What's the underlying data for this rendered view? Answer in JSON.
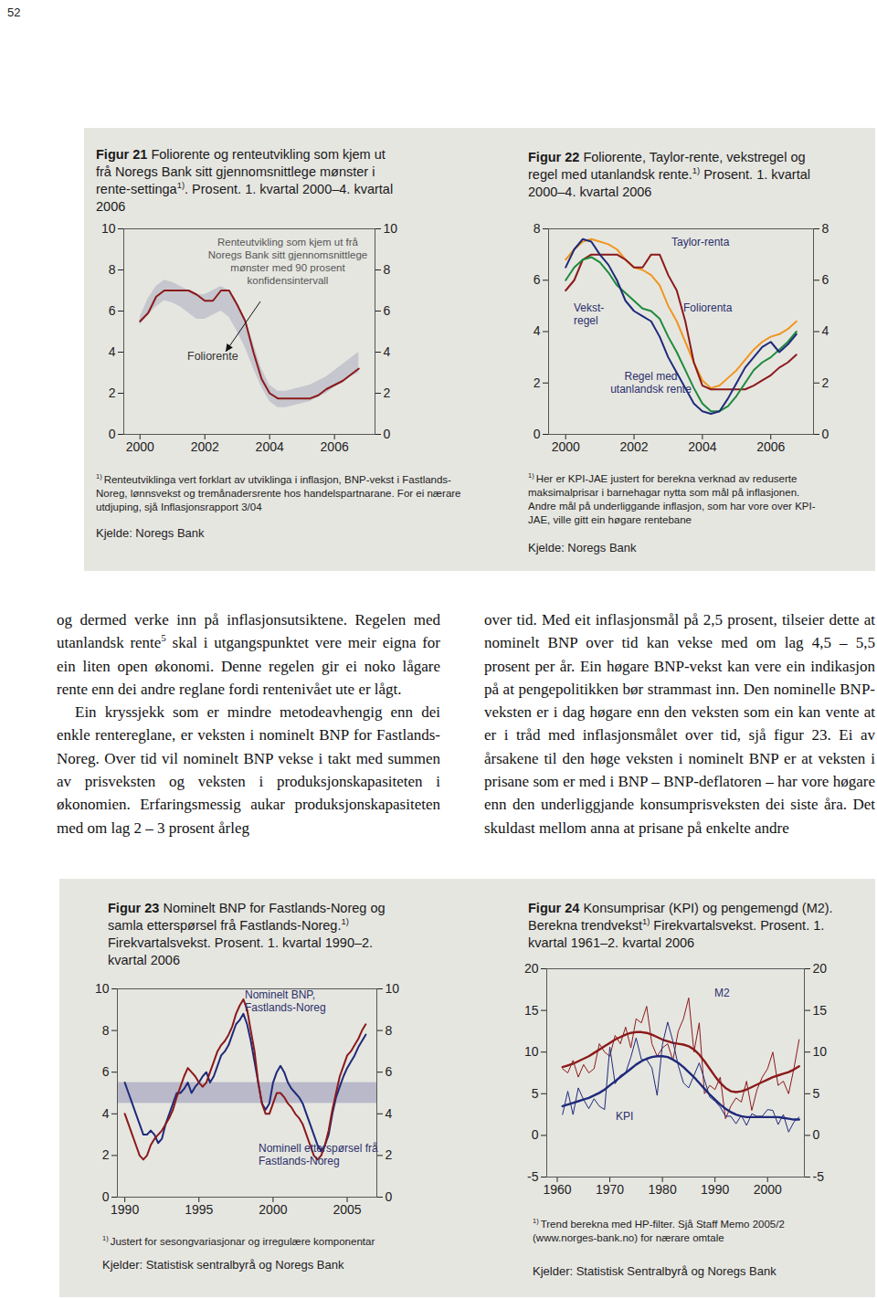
{
  "page_number": "52",
  "chart_data": [
    {
      "type": "line",
      "title": [
        {
          "text": "Figur 21",
          "bold": true
        },
        {
          "text": " Foliorente og renteutvikling som kjem ut frå Noregs Bank sitt gjennomsnittlege mønster i rente-settinga"
        },
        {
          "text": "1)",
          "sup": true
        },
        {
          "text": ". Prosent. 1. kvartal 2000–4. kvartal 2006"
        }
      ],
      "note": {
        "ref": "1)",
        "text": "Renteutviklinga vert forklart av utviklinga i inflasjon, BNP-vekst i Fastlands-Noreg, lønnsvekst og tremånadersrente hos handelspartnarane. For ei nærare utdjuping, sjå Inflasjonsrapport 3/04"
      },
      "source": "Kjelde: Noregs Bank",
      "x": [
        2000,
        2000.25,
        2000.5,
        2000.75,
        2001,
        2001.25,
        2001.5,
        2001.75,
        2002,
        2002.25,
        2002.5,
        2002.75,
        2003,
        2003.25,
        2003.5,
        2003.75,
        2004,
        2004.25,
        2004.5,
        2004.75,
        2005,
        2005.25,
        2005.5,
        2005.75,
        2006,
        2006.25,
        2006.5,
        2006.75
      ],
      "band": {
        "name": "Renteutvikling som kjem ut frå Noregs Bank sitt gjennomsnittlege mønster med 90 prosent konfidensintervall",
        "color": "#c6c6ce",
        "lower": [
          5.3,
          5.8,
          6.2,
          6.5,
          6.4,
          6.2,
          5.9,
          5.6,
          5.6,
          5.8,
          6.0,
          5.7,
          5.0,
          4.2,
          3.2,
          2.3,
          1.6,
          1.3,
          1.3,
          1.4,
          1.5,
          1.6,
          1.8,
          2.0,
          2.3,
          2.5,
          2.8,
          3.0
        ],
        "upper": [
          5.7,
          6.6,
          7.2,
          7.5,
          7.4,
          7.2,
          7.0,
          6.8,
          6.8,
          7.0,
          7.2,
          7.0,
          6.4,
          5.6,
          4.4,
          3.2,
          2.4,
          2.1,
          2.1,
          2.2,
          2.3,
          2.4,
          2.6,
          2.8,
          3.1,
          3.4,
          3.7,
          4.0
        ]
      },
      "series": [
        {
          "name": "Foliorente",
          "color": "#8b1a1a",
          "values": [
            5.5,
            5.9,
            6.7,
            7.0,
            7.0,
            7.0,
            7.0,
            6.8,
            6.5,
            6.5,
            7.0,
            7.0,
            6.3,
            5.5,
            4.0,
            2.7,
            2.0,
            1.75,
            1.75,
            1.75,
            1.75,
            1.75,
            1.9,
            2.2,
            2.4,
            2.6,
            2.9,
            3.2
          ]
        }
      ],
      "xlim": [
        1999.5,
        2007.25
      ],
      "xticks": [
        2000,
        2002,
        2004,
        2006
      ],
      "ylim": [
        0,
        10
      ],
      "yticks": [
        0,
        2,
        4,
        6,
        8,
        10
      ],
      "grid": false
    },
    {
      "type": "line",
      "title": [
        {
          "text": "Figur 22",
          "bold": true
        },
        {
          "text": " Foliorente, Taylor-rente, vekstregel og regel med utanlandsk rente."
        },
        {
          "text": "1)",
          "sup": true
        },
        {
          "text": " Prosent. 1. kvartal 2000–4. kvartal 2006"
        }
      ],
      "note": {
        "ref": "1)",
        "text": "Her er KPI-JAE justert for berekna verknad av reduserte maksimalprisar i barnehagar nytta som mål på inflasjonen. Andre mål på underliggande inflasjon, som har vore over KPI-JAE, ville gitt ein høgare rentebane"
      },
      "source": "Kjelde: Noregs Bank",
      "x": [
        2000,
        2000.25,
        2000.5,
        2000.75,
        2001,
        2001.25,
        2001.5,
        2001.75,
        2002,
        2002.25,
        2002.5,
        2002.75,
        2003,
        2003.25,
        2003.5,
        2003.75,
        2004,
        2004.25,
        2004.5,
        2004.75,
        2005,
        2005.25,
        2005.5,
        2005.75,
        2006,
        2006.25,
        2006.5,
        2006.75
      ],
      "series": [
        {
          "name": "Taylor-renta",
          "color": "#f0961e",
          "values": [
            6.8,
            7.2,
            7.5,
            7.6,
            7.5,
            7.4,
            7.2,
            6.8,
            6.5,
            6.4,
            6.2,
            5.8,
            5.0,
            4.4,
            3.6,
            2.8,
            2.1,
            1.8,
            1.9,
            2.2,
            2.5,
            2.9,
            3.3,
            3.6,
            3.8,
            3.9,
            4.1,
            4.4
          ]
        },
        {
          "name": "Foliorenta",
          "color": "#8b1a1a",
          "values": [
            5.6,
            6.0,
            6.8,
            7.0,
            7.0,
            7.0,
            7.0,
            6.8,
            6.5,
            6.5,
            7.0,
            7.0,
            6.2,
            5.6,
            4.4,
            2.8,
            1.9,
            1.75,
            1.75,
            1.75,
            1.75,
            1.75,
            1.9,
            2.1,
            2.3,
            2.6,
            2.8,
            3.1
          ]
        },
        {
          "name": "Vekst-regel",
          "color": "#1e8a3c",
          "values": [
            6.0,
            6.5,
            6.8,
            6.9,
            6.7,
            6.3,
            5.8,
            5.5,
            5.2,
            4.9,
            4.8,
            4.5,
            3.8,
            3.2,
            2.5,
            1.8,
            1.2,
            0.9,
            0.9,
            1.1,
            1.5,
            2.0,
            2.5,
            2.8,
            3.0,
            3.3,
            3.6,
            4.0
          ]
        },
        {
          "name": "Regel med utanlandsk rente",
          "color": "#1f2a7a",
          "values": [
            6.5,
            7.2,
            7.6,
            7.5,
            7.0,
            6.6,
            6.0,
            5.2,
            4.8,
            4.6,
            4.4,
            3.8,
            3.0,
            2.4,
            1.8,
            1.2,
            0.9,
            0.8,
            0.9,
            1.4,
            2.0,
            2.6,
            3.0,
            3.4,
            3.6,
            3.2,
            3.5,
            3.9
          ]
        }
      ],
      "xlim": [
        1999.5,
        2007.25
      ],
      "xticks": [
        2000,
        2002,
        2004,
        2006
      ],
      "ylim": [
        0,
        8
      ],
      "yticks": [
        0,
        2,
        4,
        6,
        8
      ],
      "grid": false
    },
    {
      "type": "line",
      "title": [
        {
          "text": "Figur 23",
          "bold": true
        },
        {
          "text": " Nominelt BNP for Fastlands-Noreg og samla etterspørsel frå Fastlands-Noreg."
        },
        {
          "text": "1)",
          "sup": true
        },
        {
          "text": " Firekvartalsvekst. Prosent. 1. kvartal 1990–2. kvartal 2006"
        }
      ],
      "note": {
        "ref": "1)",
        "text": "Justert for sesongvariasjonar og irregulære komponentar"
      },
      "source": "Kjelder: Statistisk sentralbyrå og Noregs Bank",
      "x": [
        1990,
        1990.25,
        1990.5,
        1990.75,
        1991,
        1991.25,
        1991.5,
        1991.75,
        1992,
        1992.25,
        1992.5,
        1992.75,
        1993,
        1993.25,
        1993.5,
        1993.75,
        1994,
        1994.25,
        1994.5,
        1994.75,
        1995,
        1995.25,
        1995.5,
        1995.75,
        1996,
        1996.25,
        1996.5,
        1996.75,
        1997,
        1997.25,
        1997.5,
        1997.75,
        1998,
        1998.25,
        1998.5,
        1998.75,
        1999,
        1999.25,
        1999.5,
        1999.75,
        2000,
        2000.25,
        2000.5,
        2000.75,
        2001,
        2001.25,
        2001.5,
        2001.75,
        2002,
        2002.25,
        2002.5,
        2002.75,
        2003,
        2003.25,
        2003.5,
        2003.75,
        2004,
        2004.25,
        2004.5,
        2004.75,
        2005,
        2005.25,
        2005.5,
        2005.75,
        2006,
        2006.25
      ],
      "band": {
        "color": "#b9b9ca",
        "lower": 4.5,
        "upper": 5.5
      },
      "series": [
        {
          "name": "Nominelt BNP, Fastlands-Noreg",
          "color": "#1f2a7a",
          "values": [
            5.5,
            5.0,
            4.5,
            4.0,
            3.5,
            3.0,
            3.0,
            3.2,
            3.0,
            2.6,
            2.8,
            3.5,
            4.0,
            4.5,
            5.0,
            5.0,
            5.2,
            5.5,
            5.0,
            5.3,
            5.5,
            5.8,
            6.0,
            5.5,
            5.8,
            6.3,
            6.8,
            7.0,
            7.3,
            7.8,
            8.3,
            8.5,
            8.8,
            8.3,
            7.5,
            6.5,
            5.5,
            4.5,
            4.2,
            4.5,
            5.5,
            6.0,
            6.3,
            6.0,
            5.5,
            5.2,
            5.0,
            4.8,
            4.5,
            4.0,
            3.5,
            3.0,
            2.5,
            2.2,
            2.5,
            3.0,
            4.0,
            4.8,
            5.3,
            5.8,
            6.2,
            6.5,
            6.8,
            7.2,
            7.5,
            7.8
          ]
        },
        {
          "name": "Nominell etterspørsel frå Fastlands-Noreg",
          "color": "#8b1a1a",
          "values": [
            4.0,
            3.5,
            3.0,
            2.5,
            2.0,
            1.8,
            2.0,
            2.5,
            2.8,
            3.0,
            3.2,
            3.5,
            3.8,
            4.2,
            4.8,
            5.3,
            5.8,
            6.2,
            6.0,
            5.8,
            5.5,
            5.3,
            5.5,
            6.0,
            6.5,
            7.0,
            7.3,
            7.5,
            7.8,
            8.2,
            8.8,
            9.2,
            9.5,
            9.0,
            8.0,
            7.0,
            5.5,
            4.5,
            4.0,
            4.0,
            4.5,
            5.0,
            5.0,
            4.8,
            4.5,
            4.3,
            4.0,
            3.8,
            3.5,
            3.0,
            2.5,
            2.0,
            1.8,
            2.0,
            2.5,
            3.2,
            4.2,
            5.0,
            5.8,
            6.3,
            6.8,
            7.0,
            7.3,
            7.6,
            8.0,
            8.3
          ]
        }
      ],
      "xlim": [
        1989.5,
        2007
      ],
      "xticks": [
        1990,
        1995,
        2000,
        2005
      ],
      "ylim": [
        0,
        10
      ],
      "yticks": [
        0,
        2,
        4,
        6,
        8,
        10
      ],
      "grid": false
    },
    {
      "type": "line",
      "title": [
        {
          "text": "Figur 24",
          "bold": true
        },
        {
          "text": " Konsumprisar (KPI) og pengemengd (M2). Berekna trendvekst"
        },
        {
          "text": "1)",
          "sup": true
        },
        {
          "text": " Firekvartalsvekst. Prosent. 1. kvartal 1961–2. kvartal 2006"
        }
      ],
      "note": {
        "ref": "1)",
        "text": "Trend berekna med HP-filter. Sjå Staff Memo 2005/2 (www.norges-bank.no) for nærare omtale"
      },
      "source": "Kjelder: Statistisk Sentralbyrå og Noregs Bank",
      "x": [
        1961,
        1962,
        1963,
        1964,
        1965,
        1966,
        1967,
        1968,
        1969,
        1970,
        1971,
        1972,
        1973,
        1974,
        1975,
        1976,
        1977,
        1978,
        1979,
        1980,
        1981,
        1982,
        1983,
        1984,
        1985,
        1986,
        1987,
        1988,
        1989,
        1990,
        1991,
        1992,
        1993,
        1994,
        1995,
        1996,
        1997,
        1998,
        1999,
        2000,
        2001,
        2002,
        2003,
        2004,
        2005,
        2006
      ],
      "series": [
        {
          "name": "M2",
          "color": "#8b1a1a",
          "values": [
            8.0,
            7.5,
            9.0,
            7.0,
            8.5,
            7.5,
            8.0,
            11.0,
            10.0,
            9.5,
            12.0,
            11.0,
            13.0,
            10.5,
            14.0,
            13.5,
            15.5,
            11.0,
            9.5,
            10.5,
            11.0,
            9.0,
            12.5,
            14.0,
            16.5,
            10.0,
            13.5,
            5.0,
            6.0,
            5.5,
            7.0,
            2.0,
            3.5,
            4.5,
            4.0,
            6.5,
            3.0,
            5.5,
            7.0,
            8.0,
            10.0,
            6.0,
            6.5,
            5.0,
            8.0,
            11.5
          ],
          "trend": [
            8.2,
            8.4,
            8.6,
            8.9,
            9.2,
            9.5,
            9.9,
            10.3,
            10.7,
            11.1,
            11.5,
            11.8,
            12.1,
            12.3,
            12.4,
            12.4,
            12.3,
            12.1,
            11.8,
            11.5,
            11.3,
            11.1,
            11.0,
            10.9,
            10.7,
            10.3,
            9.7,
            8.9,
            8.0,
            7.1,
            6.3,
            5.7,
            5.3,
            5.2,
            5.3,
            5.5,
            5.8,
            6.1,
            6.4,
            6.7,
            7.0,
            7.2,
            7.4,
            7.6,
            7.9,
            8.3
          ]
        },
        {
          "name": "KPI",
          "color": "#1f2a7a",
          "values": [
            2.5,
            5.3,
            2.5,
            5.7,
            4.3,
            3.2,
            4.4,
            3.5,
            3.1,
            10.6,
            6.2,
            7.2,
            7.5,
            9.4,
            11.7,
            9.1,
            9.1,
            8.1,
            4.8,
            10.9,
            13.6,
            11.3,
            8.4,
            6.3,
            5.7,
            7.2,
            8.7,
            6.7,
            4.6,
            4.1,
            3.4,
            2.3,
            2.3,
            1.4,
            2.4,
            1.2,
            2.6,
            2.3,
            2.3,
            3.1,
            3.0,
            1.3,
            2.5,
            0.4,
            1.6,
            2.2
          ],
          "trend": [
            3.5,
            3.7,
            3.9,
            4.1,
            4.3,
            4.5,
            4.8,
            5.1,
            5.5,
            6.0,
            6.5,
            7.0,
            7.5,
            8.0,
            8.5,
            8.9,
            9.2,
            9.4,
            9.5,
            9.5,
            9.4,
            9.1,
            8.7,
            8.2,
            7.6,
            7.0,
            6.3,
            5.6,
            4.9,
            4.3,
            3.7,
            3.2,
            2.8,
            2.5,
            2.3,
            2.2,
            2.2,
            2.2,
            2.2,
            2.2,
            2.2,
            2.2,
            2.1,
            2.0,
            1.9,
            1.9
          ]
        }
      ],
      "xlim": [
        1958,
        2007
      ],
      "xticks": [
        1960,
        1970,
        1980,
        1990,
        2000
      ],
      "ylim": [
        -5,
        20
      ],
      "yticks": [
        -5,
        0,
        5,
        10,
        15,
        20
      ],
      "grid": false
    }
  ],
  "body": {
    "left": [
      [
        {
          "text": "og dermed verke inn på inflasjonsutsiktene. Regelen med utanlandsk rente"
        },
        {
          "text": "5",
          "sup": true
        },
        {
          "text": " skal i utgangspunktet vere meir eigna for ein liten open økonomi. Denne regelen gir ei noko lågare rente enn dei andre reglane fordi rentenivået ute er lågt."
        }
      ],
      [
        {
          "text": "Ein kryssjekk som er mindre metodeavhengig enn dei enkle rentereglane, er veksten i nominelt BNP for Fastlands-Noreg. Over tid vil nominelt BNP vekse i takt med summen av prisveksten og veksten i produksjonskapasiteten i økonomien. Erfaringsmessig aukar produksjonskapasiteten med om lag 2 – 3 prosent årleg"
        }
      ]
    ],
    "right": [
      [
        {
          "text": "over tid. Med eit inflasjonsmål på 2,5 prosent, tilseier dette at nominelt BNP over tid kan vekse med om lag 4,5 – 5,5 prosent per år. Ein høgare BNP-vekst kan vere ein indikasjon på at pengepolitikken bør strammast inn. Den nominelle BNP-veksten er i dag høgare enn den veksten som ein kan vente at er i tråd med inflasjonsmålet over tid, sjå figur 23. Ei av årsakene til den høge veksten i nominelt BNP er at veksten i prisane som er med i BNP – BNP-deflatoren – har vore høgare enn den underliggjande konsumprisveksten dei siste åra. Det skuldast mellom anna at prisane på enkelte andre"
        }
      ]
    ]
  }
}
